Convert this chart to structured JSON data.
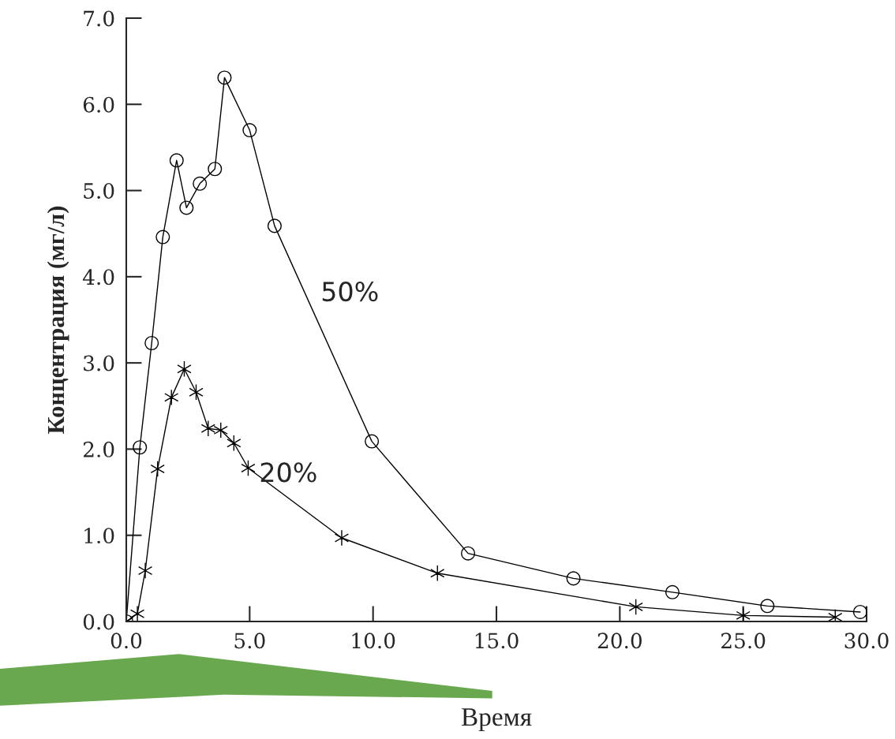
{
  "chart_data": {
    "type": "line",
    "xlabel": "Время",
    "ylabel": "Концентрация (мг/л)",
    "xlim": [
      0,
      30
    ],
    "ylim": [
      0,
      7
    ],
    "xticks": [
      {
        "value": 0,
        "label": "0.0"
      },
      {
        "value": 5,
        "label": "5.0"
      },
      {
        "value": 10,
        "label": "10.0"
      },
      {
        "value": 15,
        "label": "15.0"
      },
      {
        "value": 20,
        "label": "20.0"
      },
      {
        "value": 25,
        "label": "25.0"
      },
      {
        "value": 30,
        "label": "30.0"
      }
    ],
    "yticks": [
      {
        "value": 0,
        "label": "0.0"
      },
      {
        "value": 1,
        "label": "1.0"
      },
      {
        "value": 2,
        "label": "2.0"
      },
      {
        "value": 3,
        "label": "3.0"
      },
      {
        "value": 4,
        "label": "4.0"
      },
      {
        "value": 5,
        "label": "5.0"
      },
      {
        "value": 6,
        "label": "6.0"
      },
      {
        "value": 7,
        "label": "7.0"
      }
    ],
    "grid": false,
    "legend": false,
    "line_style": "solid",
    "series": [
      {
        "name": "50%",
        "color": "#000000",
        "marker": "circle",
        "x": [
          0,
          0.55,
          1.03,
          1.48,
          2.04,
          2.44,
          2.98,
          3.59,
          3.98,
          5.0,
          6.01,
          9.95,
          13.85,
          18.12,
          22.13,
          25.98,
          29.74
        ],
        "values": [
          0,
          2.02,
          3.23,
          4.46,
          5.35,
          4.8,
          5.08,
          5.25,
          6.31,
          5.7,
          4.59,
          2.09,
          0.79,
          0.5,
          0.34,
          0.18,
          0.11
        ]
      },
      {
        "name": "20%",
        "color": "#000000",
        "marker": "cross",
        "x": [
          0,
          0.45,
          0.77,
          1.27,
          1.83,
          2.35,
          2.83,
          3.32,
          3.83,
          4.36,
          4.94,
          8.73,
          12.61,
          20.65,
          25.0,
          28.73
        ],
        "values": [
          0,
          0.09,
          0.59,
          1.77,
          2.6,
          2.93,
          2.66,
          2.24,
          2.22,
          2.07,
          1.78,
          0.97,
          0.56,
          0.17,
          0.07,
          0.05
        ]
      }
    ]
  }
}
